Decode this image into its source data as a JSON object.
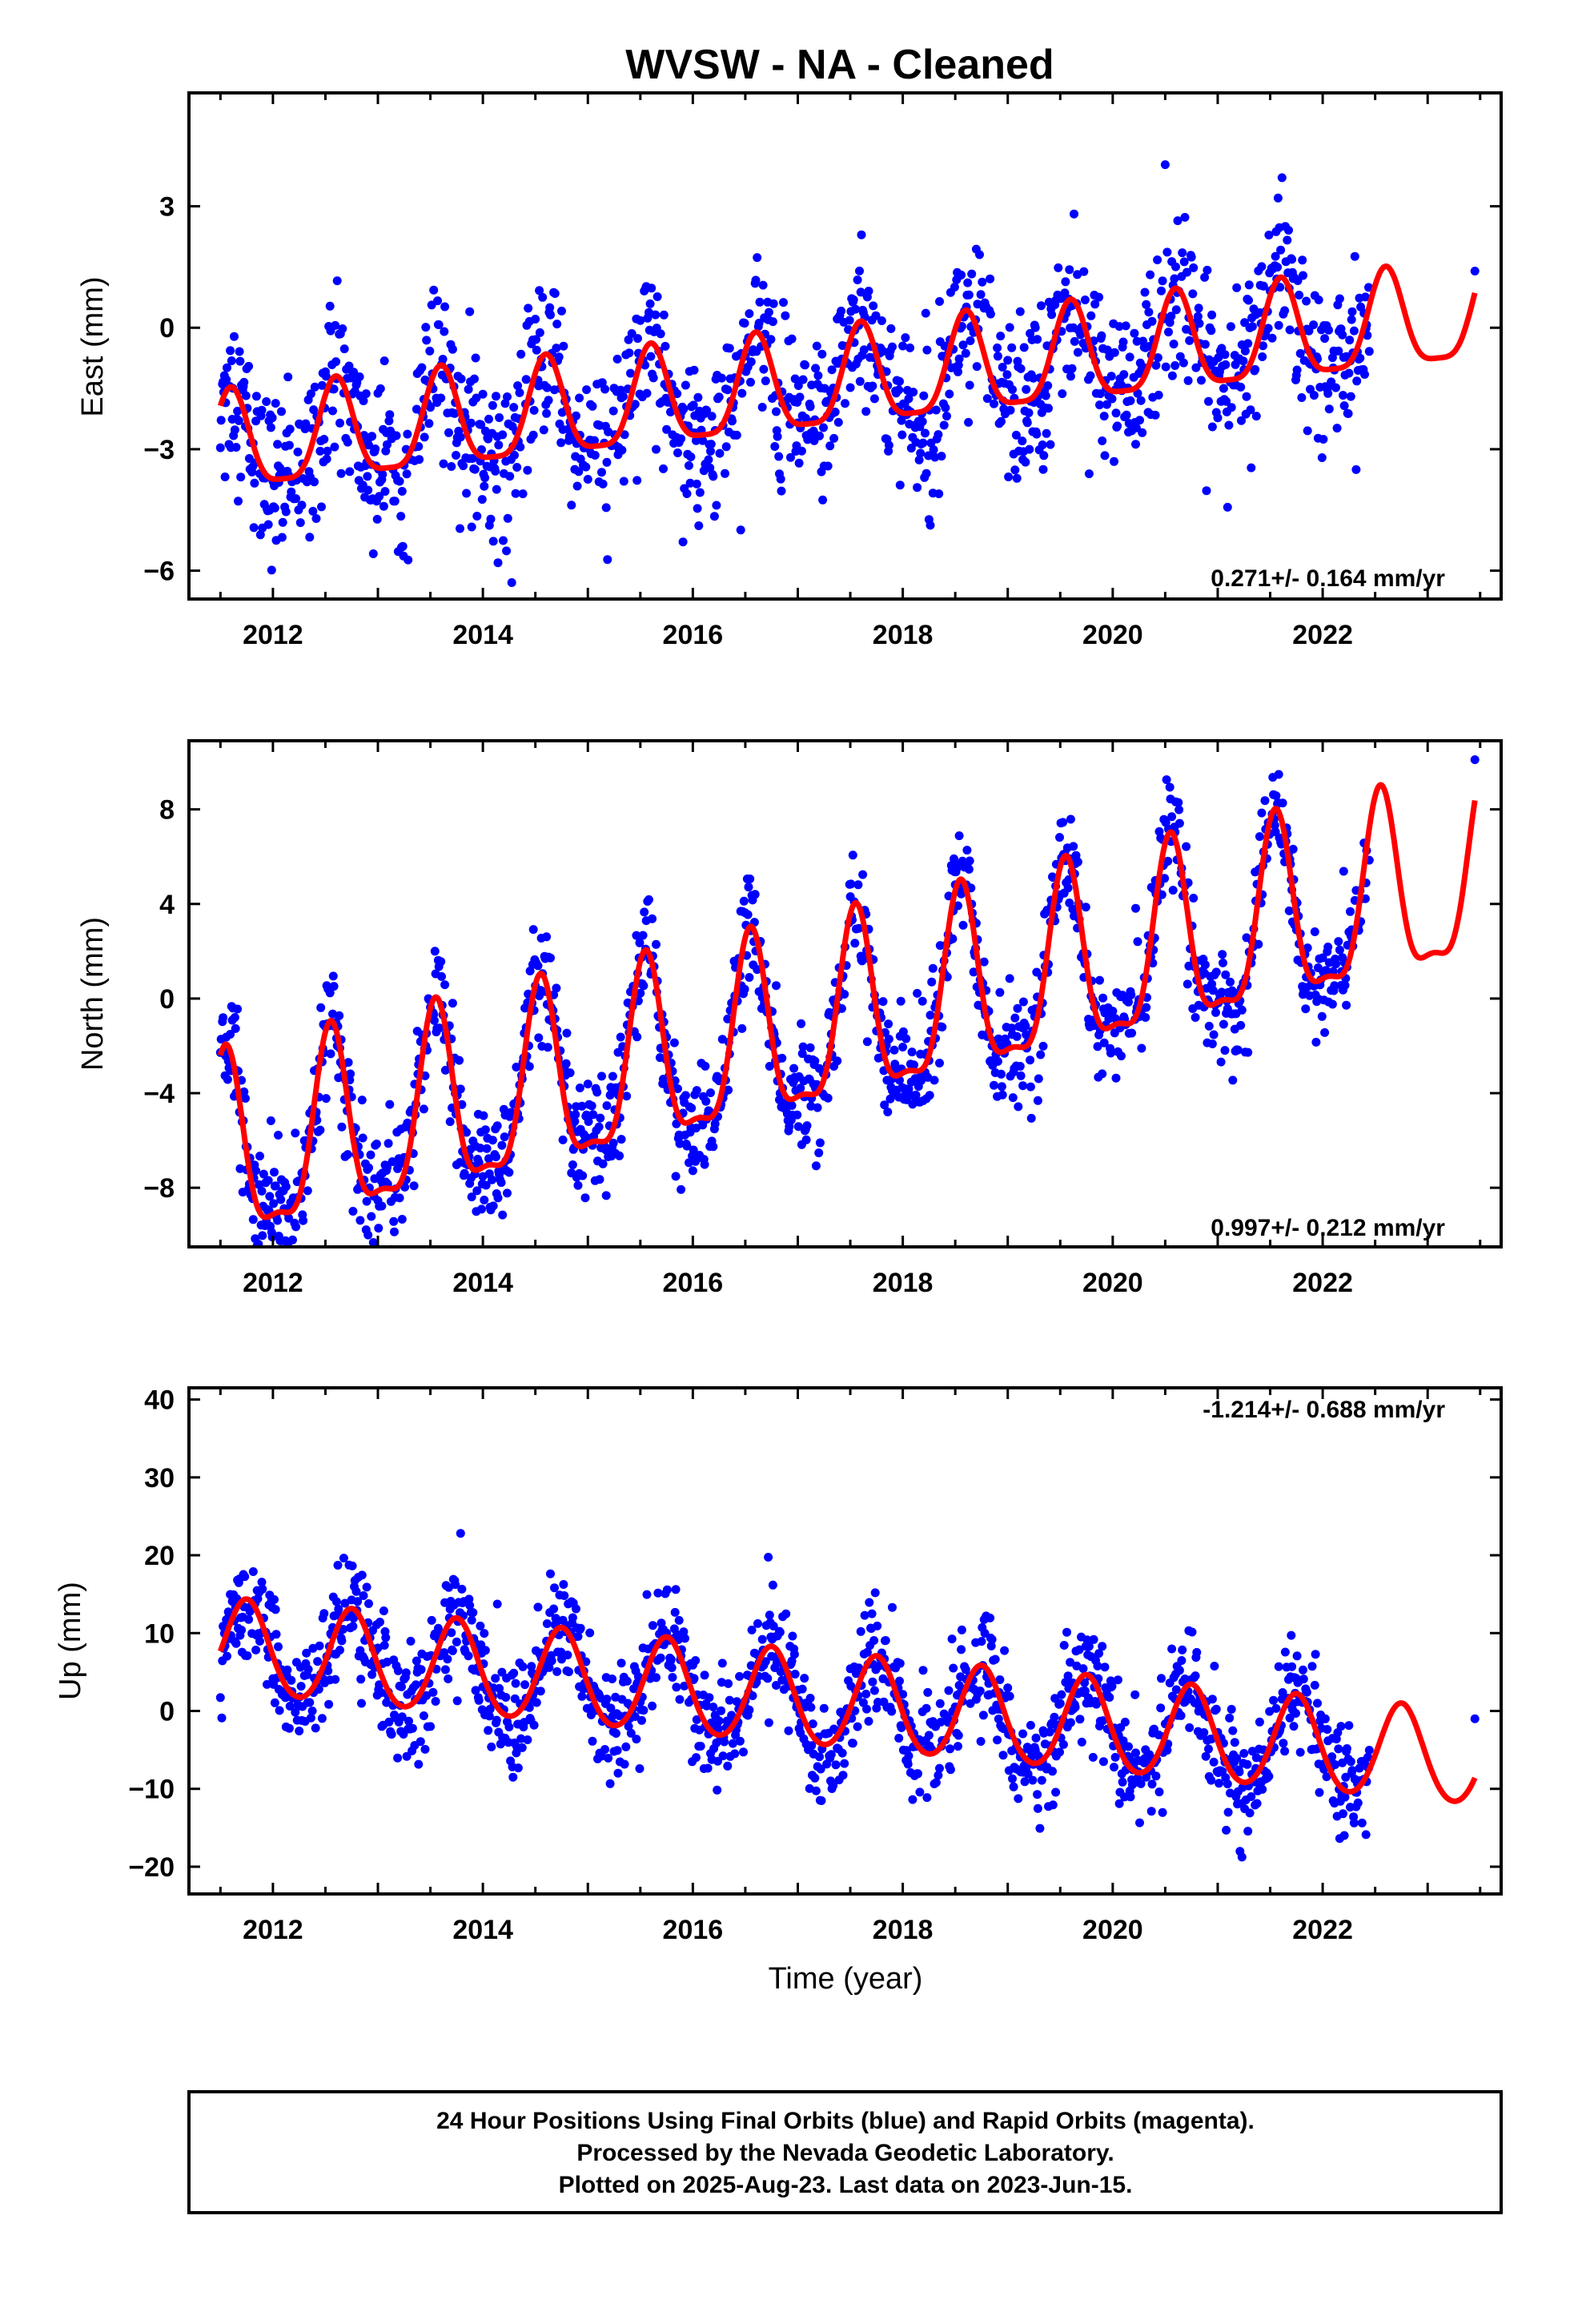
{
  "title": "WVSW  - NA - Cleaned",
  "colors": {
    "dots": "#0000ff",
    "model": "#ff0000",
    "axes": "#000000"
  },
  "footer": {
    "line1": "24 Hour Positions Using Final Orbits (blue) and Rapid Orbits (magenta).",
    "line2": "Processed by the Nevada Geodetic Laboratory.",
    "line3": "Plotted on 2025-Aug-23. Last data on 2023-Jun-15."
  },
  "chart_data": [
    {
      "type": "scatter",
      "ylabel": "East (mm)",
      "xlabel": "",
      "xlim": [
        2011.2,
        2023.7
      ],
      "ylim": [
        -6.7,
        5.8
      ],
      "xticks": [
        2012,
        2014,
        2016,
        2018,
        2020,
        2022
      ],
      "yticks": [
        -6,
        -3,
        0,
        3
      ],
      "rate": "0.271+/- 0.164 mm/yr",
      "data_start": 2011.5,
      "data_end": 2022.45,
      "last_point": [
        2023.45,
        1.4
      ],
      "model": {
        "slope": 0.271,
        "offset": -1.5,
        "ref_year": 2017,
        "annual_amp": 1.2,
        "annual_peak": 2016.6,
        "semiannual_amp": 0.3,
        "semiannual_peak": 2016.6,
        "noise_sd": 1.0
      }
    },
    {
      "type": "scatter",
      "ylabel": "North (mm)",
      "xlabel": "",
      "xlim": [
        2011.2,
        2023.7
      ],
      "ylim": [
        -10.5,
        10.9
      ],
      "xticks": [
        2012,
        2014,
        2016,
        2018,
        2020,
        2022
      ],
      "yticks": [
        -8,
        -4,
        0,
        4,
        8
      ],
      "rate": "0.997+/- 0.212 mm/yr",
      "data_start": 2011.5,
      "data_end": 2022.45,
      "last_point": [
        2023.45,
        10.1
      ],
      "model": {
        "slope": 0.997,
        "offset": -1.5,
        "ref_year": 2017,
        "annual_amp": 3.8,
        "annual_peak": 2016.55,
        "semiannual_amp": 1.2,
        "semiannual_peak": 2016.55,
        "noise_sd": 1.2
      }
    },
    {
      "type": "scatter",
      "ylabel": "Up (mm)",
      "xlabel": "Time (year)",
      "xlim": [
        2011.2,
        2023.7
      ],
      "ylim": [
        -23.5,
        41.5
      ],
      "xticks": [
        2012,
        2014,
        2016,
        2018,
        2020,
        2022
      ],
      "yticks": [
        -20,
        -10,
        0,
        10,
        20,
        30,
        40
      ],
      "rate": "-1.214+/- 0.688 mm/yr",
      "data_start": 2011.5,
      "data_end": 2022.45,
      "last_point": [
        2023.45,
        -1.0
      ],
      "model": {
        "slope": -1.214,
        "offset": 1.5,
        "ref_year": 2017,
        "annual_amp": 6.0,
        "annual_peak": 2016.75,
        "semiannual_amp": 0.5,
        "semiannual_peak": 2016.75,
        "noise_sd": 3.5
      }
    }
  ]
}
